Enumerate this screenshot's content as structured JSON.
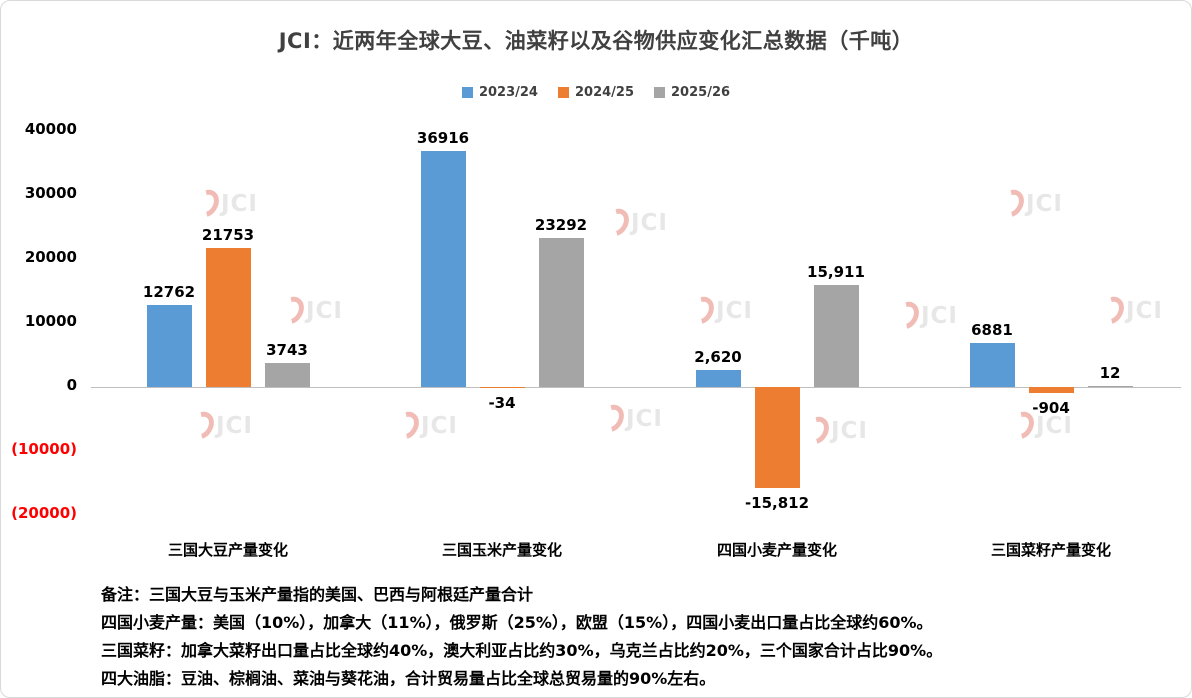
{
  "title": "JCI：近两年全球大豆、油菜籽以及谷物供应变化汇总数据（千吨）",
  "legend": [
    {
      "label": "2023/24",
      "color": "#5B9BD5"
    },
    {
      "label": "2024/25",
      "color": "#ED7D31"
    },
    {
      "label": "2025/26",
      "color": "#A5A5A5"
    }
  ],
  "chart_data": {
    "type": "bar",
    "title": "JCI：近两年全球大豆、油菜籽以及谷物供应变化汇总数据（千吨）",
    "xlabel": "",
    "ylabel": "",
    "categories": [
      "三国大豆产量变化",
      "三国玉米产量变化",
      "四国小麦产量变化",
      "三国菜籽产量变化"
    ],
    "series": [
      {
        "name": "2023/24",
        "color": "#5B9BD5",
        "values": [
          12762,
          36916,
          2620,
          6881
        ],
        "labels": [
          "12762",
          "36916",
          "2,620",
          "6881"
        ]
      },
      {
        "name": "2024/25",
        "color": "#ED7D31",
        "values": [
          21753,
          -34,
          -15812,
          -904
        ],
        "labels": [
          "21753",
          "-34",
          "-15,812",
          "-904"
        ]
      },
      {
        "name": "2025/26",
        "color": "#A5A5A5",
        "values": [
          3743,
          23292,
          15911,
          12
        ],
        "labels": [
          "3743",
          "23292",
          "15,911",
          "12"
        ]
      }
    ],
    "ylim": [
      -20000,
      40000
    ],
    "grid": false,
    "legend_position": "top",
    "y_axis": {
      "tick_interval": 10000,
      "negative_label_color": "#FF0000",
      "ticks": [
        {
          "value": 40000,
          "label": "40000",
          "negative": false
        },
        {
          "value": 30000,
          "label": "30000",
          "negative": false
        },
        {
          "value": 20000,
          "label": "20000",
          "negative": false
        },
        {
          "value": 10000,
          "label": "10000",
          "negative": false
        },
        {
          "value": 0,
          "label": "0",
          "negative": false
        },
        {
          "value": -10000,
          "label": "(10000)",
          "negative": true
        },
        {
          "value": -20000,
          "label": "(20000)",
          "negative": true
        }
      ]
    }
  },
  "watermark": {
    "text": "JCI"
  },
  "notes": [
    "备注：三国大豆与玉米产量指的美国、巴西与阿根廷产量合计",
    "四国小麦产量：美国（10%），加拿大（11%），俄罗斯（25%），欧盟（15%），四国小麦出口量占比全球约60%。",
    "三国菜籽：加拿大菜籽出口量占比全球约40%，澳大利亚占比约30%，乌克兰占比约20%，三个国家合计占比90%。",
    "四大油脂：豆油、棕榈油、菜油与葵花油，合计贸易量占比全球总贸易量的90%左右。"
  ]
}
